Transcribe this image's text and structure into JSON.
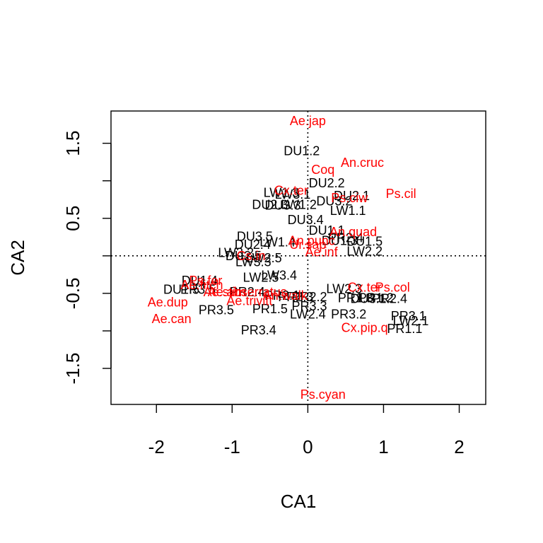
{
  "chart_data": {
    "type": "scatter",
    "title": "",
    "xlabel": "CA1",
    "ylabel": "CA2",
    "xlim": [
      -2.6,
      2.35
    ],
    "ylim": [
      -1.98,
      1.93
    ],
    "xticks": [
      -2,
      -1,
      0,
      1,
      2
    ],
    "yticks": [
      -1.5,
      -0.5,
      0.5,
      1.5
    ],
    "xtick_labels": [
      "-2",
      "-1",
      "0",
      "1",
      "2"
    ],
    "ytick_labels": [
      "-1.5",
      "-0.5",
      "0.5",
      "1.5"
    ],
    "reference_lines": {
      "x": 0,
      "y": 0,
      "style": "dotted"
    },
    "grid": false,
    "colors": {
      "sites": "#000000",
      "species": "#ff0000"
    },
    "series": [
      {
        "points": [
          {
            "label": "DU1.2",
            "x": -0.08,
            "y": 1.4
          },
          {
            "label": "DU2.2",
            "x": 0.25,
            "y": 0.97
          },
          {
            "label": "LW1.3",
            "x": -0.35,
            "y": 0.84
          },
          {
            "label": "LW3.1",
            "x": -0.2,
            "y": 0.82
          },
          {
            "label": "DU2.1",
            "x": 0.58,
            "y": 0.8
          },
          {
            "label": "DU2.3",
            "x": -0.5,
            "y": 0.68
          },
          {
            "label": "DU3.3",
            "x": -0.33,
            "y": 0.67
          },
          {
            "label": "LW1.2",
            "x": -0.12,
            "y": 0.68
          },
          {
            "label": "DU3.2",
            "x": 0.35,
            "y": 0.73
          },
          {
            "label": "LW1.1",
            "x": 0.53,
            "y": 0.6
          },
          {
            "label": "DU3.4",
            "x": -0.03,
            "y": 0.48
          },
          {
            "label": "DU3.5",
            "x": -0.7,
            "y": 0.26
          },
          {
            "label": "DU1.1",
            "x": 0.25,
            "y": 0.34
          },
          {
            "label": "DU1.3",
            "x": 0.42,
            "y": 0.2
          },
          {
            "label": "PR2.4",
            "x": 0.5,
            "y": 0.24
          },
          {
            "label": "DU1.5",
            "x": 0.75,
            "y": 0.19
          },
          {
            "label": "DU2.4",
            "x": -0.73,
            "y": 0.15
          },
          {
            "label": "LW1.4",
            "x": -0.4,
            "y": 0.18
          },
          {
            "label": "LW2.2",
            "x": 0.75,
            "y": 0.06
          },
          {
            "label": "LW3.2",
            "x": -0.95,
            "y": 0.04
          },
          {
            "label": "DU2.5",
            "x": -0.85,
            "y": 0.0
          },
          {
            "label": "LW2.5",
            "x": -0.58,
            "y": -0.03
          },
          {
            "label": "LW3.3",
            "x": -0.72,
            "y": -0.08
          },
          {
            "label": "LW3.4",
            "x": -0.38,
            "y": -0.26
          },
          {
            "label": "LW2.5",
            "x": -0.62,
            "y": -0.29
          },
          {
            "label": "DU1.4",
            "x": -1.43,
            "y": -0.33
          },
          {
            "label": "DU3.1",
            "x": 0.8,
            "y": -0.57
          },
          {
            "label": "PR2.1",
            "x": -0.34,
            "y": -0.53
          },
          {
            "label": "PR2.3",
            "x": -0.16,
            "y": -0.55
          },
          {
            "label": "PR2.2",
            "x": 0.02,
            "y": -0.55
          },
          {
            "label": "PR1.3",
            "x": 0.63,
            "y": -0.56
          },
          {
            "label": "PR1.2",
            "x": 0.9,
            "y": -0.56
          },
          {
            "label": "PR2.4",
            "x": 1.08,
            "y": -0.57
          },
          {
            "label": "LW2.3",
            "x": 0.48,
            "y": -0.44
          },
          {
            "label": "DU1.5",
            "x": -1.67,
            "y": -0.45
          },
          {
            "label": "PR3.5",
            "x": -1.45,
            "y": -0.45
          },
          {
            "label": "PR2.4",
            "x": -0.8,
            "y": -0.48
          },
          {
            "label": "PR3.3",
            "x": 0.02,
            "y": -0.67
          },
          {
            "label": "PR3.5",
            "x": -1.21,
            "y": -0.72
          },
          {
            "label": "PR1.5",
            "x": -0.5,
            "y": -0.71
          },
          {
            "label": "LW2.4",
            "x": 0.0,
            "y": -0.78
          },
          {
            "label": "PR3.2",
            "x": 0.54,
            "y": -0.78
          },
          {
            "label": "PR3.1",
            "x": 1.33,
            "y": -0.8
          },
          {
            "label": "LW2.1",
            "x": 1.36,
            "y": -0.87
          },
          {
            "label": "PR1.1",
            "x": 1.28,
            "y": -0.97
          },
          {
            "label": "PR3.4",
            "x": -0.65,
            "y": -0.99
          }
        ]
      },
      {
        "points": [
          {
            "label": "Ae.jap",
            "x": 0.0,
            "y": 1.8
          },
          {
            "label": "An.cruc",
            "x": 0.72,
            "y": 1.24
          },
          {
            "label": "Coq",
            "x": 0.2,
            "y": 1.15
          },
          {
            "label": "Ps.cil",
            "x": 1.23,
            "y": 0.83
          },
          {
            "label": "Cx.ter",
            "x": -0.22,
            "y": 0.87
          },
          {
            "label": "Ps.ciw",
            "x": 0.55,
            "y": 0.77
          },
          {
            "label": "An.quad",
            "x": 0.6,
            "y": 0.32
          },
          {
            "label": "An.punc",
            "x": 0.05,
            "y": 0.2
          },
          {
            "label": "Ur.sap",
            "x": 0.0,
            "y": 0.15
          },
          {
            "label": "Ae.inf",
            "x": 0.18,
            "y": 0.05
          },
          {
            "label": "Cs.in",
            "x": -0.75,
            "y": 0.0
          },
          {
            "label": "Ae.fitch",
            "x": -1.4,
            "y": -0.39
          },
          {
            "label": "Ps.fer",
            "x": -1.35,
            "y": -0.33
          },
          {
            "label": "Ae.stim",
            "x": -1.1,
            "y": -0.48
          },
          {
            "label": "Ae.abserratus",
            "x": -0.8,
            "y": -0.48
          },
          {
            "label": "An.walk",
            "x": -0.3,
            "y": -0.53
          },
          {
            "label": "Ps.col",
            "x": 1.12,
            "y": -0.42
          },
          {
            "label": "Cx.ter",
            "x": 0.75,
            "y": -0.42
          },
          {
            "label": "Ae.dup",
            "x": -1.85,
            "y": -0.62
          },
          {
            "label": "Ae.trivitt",
            "x": -0.77,
            "y": -0.6
          },
          {
            "label": "Ae.can",
            "x": -1.8,
            "y": -0.84
          },
          {
            "label": "Cx.pip.q",
            "x": 0.75,
            "y": -0.96
          },
          {
            "label": "Ps.cyan",
            "x": 0.2,
            "y": -1.85
          }
        ]
      }
    ]
  }
}
